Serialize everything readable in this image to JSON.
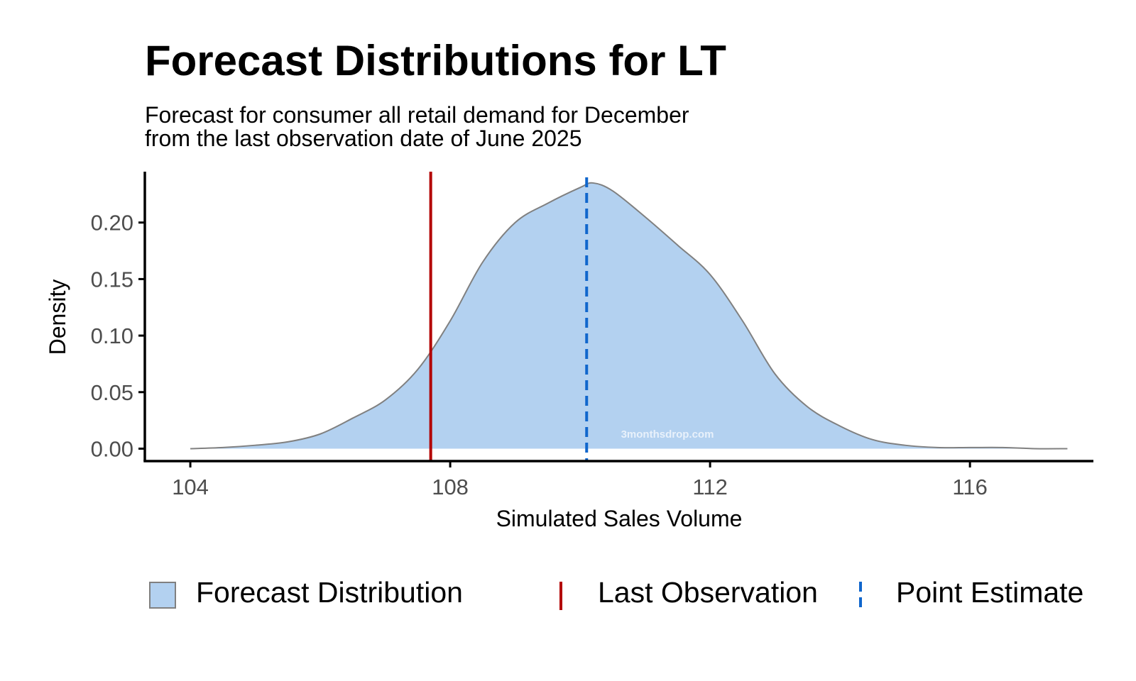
{
  "chart_data": {
    "type": "area",
    "title": "Forecast Distributions for LT",
    "subtitle_lines": [
      "Forecast for consumer all retail demand for December",
      "from the last observation date of June 2025"
    ],
    "xlabel": "Simulated Sales Volume",
    "ylabel": "Density",
    "xlim": [
      103.3,
      117.9
    ],
    "ylim": [
      -0.011,
      0.245
    ],
    "x_ticks": [
      104,
      108,
      112,
      116
    ],
    "x_tick_labels": [
      "104",
      "108",
      "112",
      "116"
    ],
    "y_ticks": [
      0.0,
      0.05,
      0.1,
      0.15,
      0.2
    ],
    "y_tick_labels": [
      "0.00",
      "0.05",
      "0.10",
      "0.15",
      "0.20"
    ],
    "grid": false,
    "legend_position": "bottom",
    "series": [
      {
        "name": "Forecast Distribution",
        "kind": "density",
        "x": [
          104.0,
          104.5,
          105.0,
          105.5,
          106.0,
          106.5,
          107.0,
          107.5,
          108.0,
          108.5,
          109.0,
          109.5,
          110.0,
          110.2,
          110.5,
          111.0,
          111.5,
          112.0,
          112.5,
          113.0,
          113.5,
          114.0,
          114.5,
          115.0,
          115.5,
          116.0,
          116.5,
          117.0,
          117.5
        ],
        "y": [
          0.0,
          0.001,
          0.003,
          0.006,
          0.013,
          0.027,
          0.043,
          0.07,
          0.113,
          0.165,
          0.2,
          0.217,
          0.231,
          0.235,
          0.228,
          0.205,
          0.18,
          0.154,
          0.113,
          0.066,
          0.037,
          0.02,
          0.008,
          0.003,
          0.001,
          0.001,
          0.001,
          0.0,
          0.0
        ]
      },
      {
        "name": "Last Observation",
        "kind": "vline",
        "x": 107.7
      },
      {
        "name": "Point Estimate",
        "kind": "vline-dashed",
        "x": 110.1
      }
    ],
    "colors": {
      "fill": "#b3d1f0",
      "outline": "#808080",
      "last_observation": "#b30000",
      "point_estimate": "#1066cc",
      "axis": "#000000",
      "tick_label": "#4d4d4d"
    },
    "watermark": "3monthsdrop.com"
  }
}
